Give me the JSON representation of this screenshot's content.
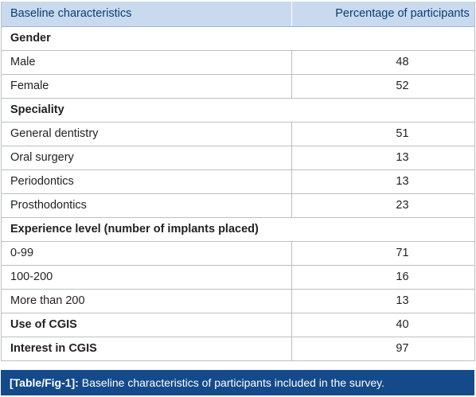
{
  "table": {
    "header": {
      "col1": "Baseline characteristics",
      "col2": "Percentage of participants"
    },
    "sections": {
      "gender": "Gender",
      "speciality": "Speciality",
      "experience": "Experience level (number of implants placed)"
    },
    "rows": {
      "male": {
        "label": "Male",
        "value": "48"
      },
      "female": {
        "label": "Female",
        "value": "52"
      },
      "general_dentistry": {
        "label": "General dentistry",
        "value": "51"
      },
      "oral_surgery": {
        "label": "Oral surgery",
        "value": "13"
      },
      "periodontics": {
        "label": "Periodontics",
        "value": "13"
      },
      "prosthodontics": {
        "label": "Prosthodontics",
        "value": "23"
      },
      "exp_0_99": {
        "label": "0-99",
        "value": "71"
      },
      "exp_100_200": {
        "label": "100-200",
        "value": "16"
      },
      "exp_200_plus": {
        "label": "More than 200",
        "value": "13"
      },
      "use_cgis": {
        "label": "Use of CGIS",
        "value": "40"
      },
      "interest_cgis": {
        "label": "Interest in CGIS",
        "value": "97"
      }
    }
  },
  "caption": {
    "tag": "[Table/Fig-1]:",
    "text": "Baseline characteristics of participants included in the survey."
  },
  "colors": {
    "header_bg": "#c9daef",
    "header_text": "#0b3b76",
    "caption_bg": "#154a8a",
    "border": "#bcbec0"
  }
}
